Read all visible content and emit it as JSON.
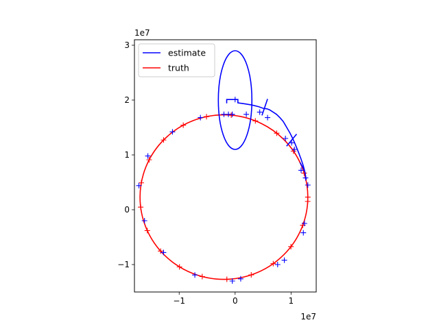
{
  "chart_data": {
    "type": "line",
    "title": "",
    "xlabel": "",
    "ylabel": "",
    "x_offset_label": "1e7",
    "y_offset_label": "1e7",
    "xlim": [
      -1.8,
      1.45
    ],
    "ylim": [
      -1.5,
      3.1
    ],
    "xticks": [
      {
        "v": -1,
        "label": "−1"
      },
      {
        "v": 0,
        "label": "0"
      },
      {
        "v": 1,
        "label": "1"
      }
    ],
    "yticks": [
      {
        "v": -1,
        "label": "−1"
      },
      {
        "v": 0,
        "label": "0"
      },
      {
        "v": 1,
        "label": "1"
      },
      {
        "v": 2,
        "label": "2"
      },
      {
        "v": 3,
        "label": "3"
      }
    ],
    "aspect": "equal",
    "grid": false,
    "legend_position": "top-left",
    "colors": {
      "estimate": "#0000ff",
      "truth": "#ff0000"
    },
    "legend": [
      {
        "name": "estimate",
        "color": "#0000ff"
      },
      {
        "name": "truth",
        "color": "#ff0000"
      }
    ],
    "series": [
      {
        "name": "truth",
        "kind": "circle",
        "center": [
          -0.2,
          0.23
        ],
        "radius": 1.5,
        "markers_deg": [
          0,
          17,
          34,
          51,
          68,
          85,
          102,
          119,
          136,
          153,
          170,
          187,
          204,
          221,
          238,
          255,
          272,
          289,
          306,
          323,
          340,
          357
        ]
      },
      {
        "name": "estimate",
        "kind": "ellipse",
        "center": [
          0.0,
          2.0
        ],
        "rx": 0.3,
        "ry": 0.9
      },
      {
        "name": "estimate",
        "kind": "path",
        "points": [
          [
            -0.15,
            1.94
          ],
          [
            -0.15,
            2.01
          ],
          [
            0.05,
            2.01
          ],
          [
            0.05,
            1.95
          ],
          [
            0.18,
            1.93
          ],
          [
            0.3,
            1.91
          ],
          [
            0.42,
            1.88
          ],
          [
            0.5,
            1.85
          ],
          [
            0.57,
            1.84
          ],
          [
            0.62,
            1.82
          ],
          [
            0.68,
            1.78
          ],
          [
            0.74,
            1.74
          ],
          [
            0.8,
            1.68
          ],
          [
            0.86,
            1.61
          ],
          [
            0.9,
            1.54
          ],
          [
            0.94,
            1.47
          ],
          [
            0.98,
            1.4
          ],
          [
            1.02,
            1.32
          ],
          [
            1.06,
            1.23
          ],
          [
            1.1,
            1.13
          ],
          [
            1.14,
            1.03
          ],
          [
            1.18,
            0.92
          ],
          [
            1.22,
            0.8
          ],
          [
            1.25,
            0.68
          ],
          [
            1.27,
            0.55
          ]
        ]
      },
      {
        "name": "estimate",
        "kind": "segment",
        "from": [
          0.48,
          1.72
        ],
        "to": [
          0.58,
          2.02
        ]
      },
      {
        "name": "estimate",
        "kind": "segment",
        "from": [
          0.92,
          1.16
        ],
        "to": [
          1.1,
          1.38
        ]
      },
      {
        "name": "estimate",
        "kind": "segment",
        "from": [
          1.16,
          0.86
        ],
        "to": [
          1.24,
          0.72
        ]
      }
    ],
    "estimate_markers": [
      [
        0.0,
        2.01
      ],
      [
        -0.12,
        1.74
      ],
      [
        0.44,
        1.78
      ],
      [
        0.58,
        1.68
      ],
      [
        0.9,
        1.3
      ],
      [
        1.01,
        1.22
      ],
      [
        1.06,
        1.1
      ],
      [
        1.18,
        0.72
      ],
      [
        1.26,
        0.58
      ],
      [
        1.3,
        0.45
      ],
      [
        1.24,
        -0.25
      ],
      [
        1.22,
        -0.42
      ],
      [
        0.88,
        -0.92
      ],
      [
        0.76,
        -1.0
      ],
      [
        0.1,
        -1.26
      ],
      [
        -0.05,
        -1.3
      ],
      [
        -0.72,
        -1.19
      ],
      [
        -1.28,
        -0.78
      ],
      [
        -1.62,
        -0.2
      ],
      [
        -1.72,
        0.44
      ],
      [
        -1.56,
        0.98
      ],
      [
        -1.12,
        1.42
      ],
      [
        -0.62,
        1.68
      ],
      [
        -0.2,
        1.74
      ],
      [
        0.2,
        1.74
      ],
      [
        -0.05,
        1.74
      ]
    ]
  }
}
